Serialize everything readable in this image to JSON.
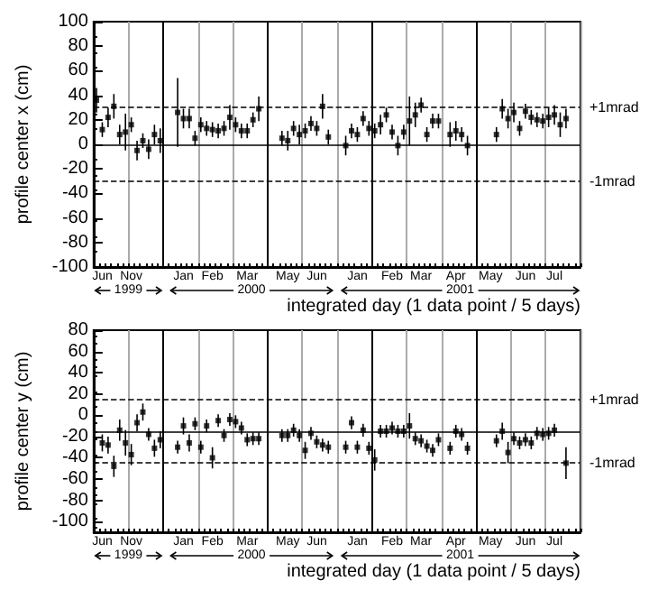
{
  "chart_data": [
    {
      "type": "scatter",
      "ylabel": "profile center x (cm)",
      "xlabel": "integrated day (1 data point / 5 days)",
      "marker": "square",
      "color": "#000000",
      "grid": "x",
      "categories": [
        null,
        "Jun",
        null,
        null,
        null,
        null,
        "Nov",
        null,
        null,
        null,
        null,
        null,
        null,
        null,
        null,
        "Jan",
        null,
        null,
        null,
        null,
        "Feb",
        null,
        null,
        null,
        null,
        null,
        "Mar",
        null,
        null,
        null,
        null,
        null,
        null,
        "May",
        null,
        null,
        null,
        null,
        "Jun",
        null,
        null,
        null,
        null,
        null,
        null,
        "Jan",
        null,
        null,
        null,
        null,
        null,
        "Feb",
        null,
        null,
        null,
        null,
        "Mar",
        null,
        null,
        null,
        null,
        null,
        "Apr",
        null,
        null,
        null,
        null,
        null,
        "May",
        null,
        null,
        null,
        null,
        null,
        "Jun",
        null,
        null,
        null,
        null,
        "Jul",
        null,
        null,
        null,
        null
      ],
      "values": [
        36,
        12,
        22,
        31,
        8,
        10,
        16,
        -5,
        3,
        -4,
        8,
        3,
        null,
        null,
        26,
        21,
        21,
        5,
        16,
        13,
        12,
        11,
        13,
        22,
        16,
        11,
        11,
        20,
        29,
        null,
        null,
        null,
        5,
        3,
        13,
        8,
        11,
        17,
        13,
        31,
        6,
        null,
        null,
        -1,
        11,
        8,
        21,
        13,
        11,
        16,
        24,
        10,
        -1,
        10,
        19,
        24,
        32,
        8,
        19,
        19,
        null,
        8,
        11,
        8,
        -1,
        null,
        null,
        null,
        null,
        8,
        29,
        21,
        26,
        13,
        27,
        22,
        20,
        19,
        22,
        24,
        16,
        21,
        null,
        null
      ],
      "errors": [
        10,
        6,
        8,
        10,
        8,
        15,
        6,
        8,
        6,
        8,
        8,
        10,
        null,
        null,
        28,
        8,
        8,
        6,
        6,
        6,
        6,
        6,
        6,
        10,
        6,
        6,
        6,
        6,
        10,
        null,
        null,
        null,
        6,
        8,
        6,
        8,
        6,
        6,
        6,
        10,
        6,
        null,
        null,
        8,
        6,
        6,
        6,
        6,
        6,
        8,
        6,
        6,
        8,
        6,
        20,
        10,
        6,
        6,
        6,
        6,
        null,
        10,
        8,
        6,
        8,
        null,
        null,
        null,
        null,
        6,
        8,
        8,
        8,
        6,
        6,
        6,
        6,
        6,
        8,
        8,
        10,
        8,
        null,
        null
      ],
      "ylim": [
        -100,
        100
      ],
      "yticks": [
        -100,
        -80,
        -60,
        -40,
        -20,
        0,
        20,
        40,
        60,
        80,
        100
      ],
      "ref_lines": [
        {
          "axis": "y",
          "value": 30,
          "label": "+1mrad",
          "line_style": "dashed",
          "color": "#000000"
        },
        {
          "axis": "y",
          "value": -30,
          "label": "-1mrad",
          "line_style": "dashed",
          "color": "#000000"
        },
        {
          "axis": "y",
          "value": 0,
          "label": null,
          "line_style": "solid",
          "color": "#000000"
        }
      ],
      "annotations": [
        "1999",
        "2000",
        "2001"
      ]
    },
    {
      "type": "scatter",
      "ylabel": "profile center y (cm)",
      "xlabel": "integrated day (1 data point / 5 days)",
      "marker": "square",
      "color": "#000000",
      "grid": "x",
      "categories": [
        null,
        "Jun",
        null,
        null,
        null,
        null,
        "Nov",
        null,
        null,
        null,
        null,
        null,
        null,
        null,
        null,
        "Jan",
        null,
        null,
        null,
        null,
        "Feb",
        null,
        null,
        null,
        null,
        null,
        "Mar",
        null,
        null,
        null,
        null,
        null,
        null,
        "May",
        null,
        null,
        null,
        null,
        "Jun",
        null,
        null,
        null,
        null,
        null,
        null,
        "Jan",
        null,
        null,
        null,
        null,
        null,
        "Feb",
        null,
        null,
        null,
        null,
        "Mar",
        null,
        null,
        null,
        null,
        null,
        "Apr",
        null,
        null,
        null,
        null,
        null,
        "May",
        null,
        null,
        null,
        null,
        null,
        "Jun",
        null,
        null,
        null,
        null,
        "Jul",
        null,
        null,
        null,
        null
      ],
      "values": [
        null,
        -26,
        -28,
        -48,
        -14,
        -26,
        -37,
        -7,
        3,
        -18,
        -31,
        -23,
        null,
        null,
        -30,
        -10,
        -26,
        -8,
        -30,
        -10,
        -40,
        -5,
        -19,
        -4,
        -6,
        -12,
        -23,
        -22,
        -22,
        null,
        null,
        null,
        -19,
        -19,
        -14,
        -19,
        -33,
        -17,
        -25,
        -28,
        -30,
        null,
        null,
        -30,
        -7,
        -30,
        -14,
        -31,
        -42,
        -15,
        -15,
        -12,
        -15,
        -15,
        -10,
        -22,
        -24,
        -29,
        -33,
        -23,
        null,
        -31,
        -15,
        -18,
        -31,
        null,
        null,
        null,
        null,
        -24,
        -15,
        -35,
        -22,
        -26,
        -23,
        -26,
        -17,
        -18,
        -17,
        -14,
        null,
        -45,
        null,
        null
      ],
      "errors": [
        null,
        8,
        8,
        10,
        10,
        12,
        10,
        8,
        8,
        6,
        8,
        8,
        null,
        null,
        6,
        8,
        8,
        6,
        6,
        6,
        10,
        6,
        6,
        6,
        6,
        6,
        6,
        6,
        6,
        null,
        null,
        null,
        6,
        6,
        6,
        6,
        8,
        6,
        6,
        6,
        6,
        null,
        null,
        6,
        6,
        6,
        6,
        6,
        10,
        6,
        6,
        6,
        6,
        6,
        12,
        6,
        6,
        6,
        6,
        6,
        null,
        6,
        6,
        6,
        6,
        null,
        null,
        null,
        null,
        6,
        8,
        10,
        6,
        6,
        6,
        6,
        6,
        6,
        6,
        6,
        null,
        15,
        null,
        null
      ],
      "ylim": [
        -110,
        80
      ],
      "yticks": [
        -100,
        -80,
        -60,
        -40,
        -20,
        0,
        20,
        40,
        60,
        80
      ],
      "ref_lines": [
        {
          "axis": "y",
          "value": 15,
          "label": "+1mrad",
          "line_style": "dashed",
          "color": "#000000"
        },
        {
          "axis": "y",
          "value": -45,
          "label": "-1mrad",
          "line_style": "dashed",
          "color": "#000000"
        },
        {
          "axis": "y",
          "value": -15,
          "label": null,
          "line_style": "solid",
          "color": "#000000"
        }
      ],
      "annotations": [
        "1999",
        "2000",
        "2001"
      ]
    }
  ]
}
